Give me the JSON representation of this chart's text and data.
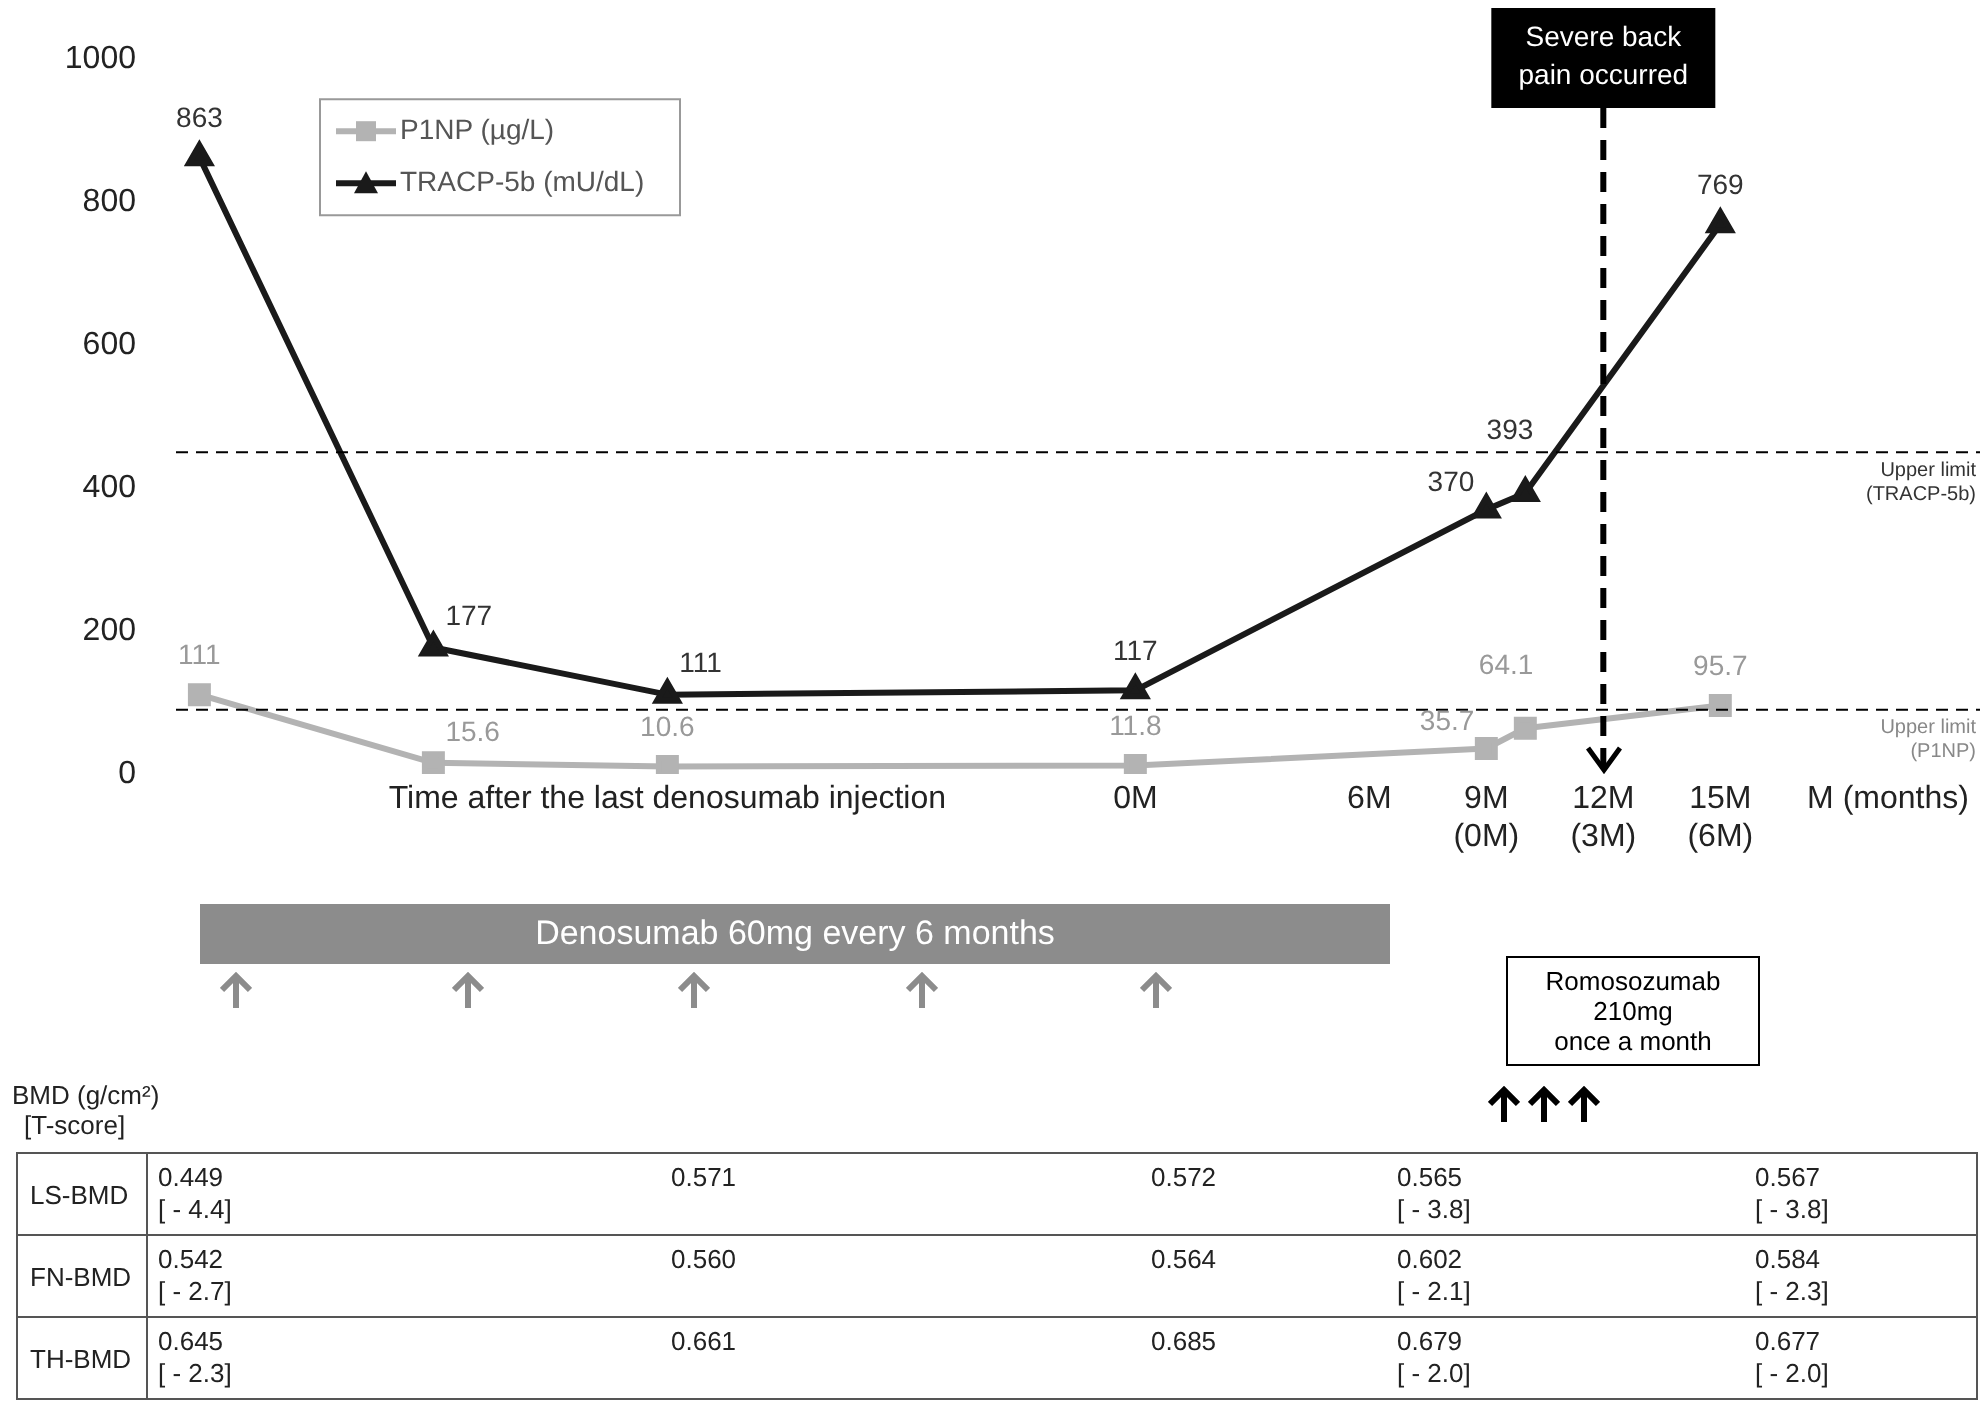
{
  "chart_data": [
    {
      "type": "line",
      "x": [
        -24,
        -18,
        -12,
        0,
        9,
        10,
        15
      ],
      "series": [
        {
          "name": "P1NP (µg/L)",
          "color": "#b3b3b3",
          "marker": "square",
          "values": [
            111,
            15.6,
            10.6,
            11.8,
            35.7,
            64.1,
            95.7
          ]
        },
        {
          "name": "TRACP-5b (mU/dL)",
          "color": "#1a1a1a",
          "marker": "triangle",
          "values": [
            863,
            177,
            111,
            117,
            370,
            393,
            769
          ]
        }
      ],
      "xlim": [
        -24.6,
        19.3
      ],
      "xticks": [
        {
          "value": -12,
          "label": "Time after the last denosumab injection"
        },
        {
          "value": 0,
          "label": "0M"
        },
        {
          "value": 6,
          "label": "6M"
        },
        {
          "value": 9,
          "label": "9M\n(0M)"
        },
        {
          "value": 12,
          "label": "12M\n(3M)"
        },
        {
          "value": 15,
          "label": "15M\n(6M)"
        },
        {
          "value": 19.3,
          "label": "M (months)"
        }
      ],
      "ylim": [
        0,
        1000
      ],
      "yticks": [
        0,
        200,
        400,
        600,
        800,
        1000
      ],
      "grid": false,
      "legend": "top left",
      "data_labels": true,
      "line_style": "solid",
      "ref_lines": [
        {
          "axis": "y",
          "value": 450,
          "label": "Upper limit\n(TRACP-5b)",
          "color": "#000000",
          "line_style": "dashed"
        },
        {
          "axis": "y",
          "value": 90,
          "label": "Upper limit\n(P1NP)",
          "color": "#000000",
          "line_style": "dashed"
        },
        {
          "axis": "x",
          "value": 12,
          "label": "Severe back pain occurred",
          "color": "#000000",
          "line_style": "dashed"
        }
      ],
      "annotations": [
        "Denosumab 60mg every 6 months",
        "Romosozumab\n210mg\nonce a month"
      ]
    },
    {
      "type": "other",
      "title": "BMD (g/cm²)",
      "subtitle": "[T-score]",
      "y_categories": [
        "LS-BMD",
        "FN-BMD",
        "TH-BMD"
      ],
      "cell_labels": [
        [
          "0.449\n[ - 4.4]",
          "0.571",
          "0.572",
          "0.565\n[ - 3.8]",
          "0.567\n[ - 3.8]"
        ],
        [
          "0.542\n[ - 2.7]",
          "0.560",
          "0.564",
          "0.602\n[ - 2.1]",
          "0.584\n[ - 2.3]"
        ],
        [
          "0.645\n[ - 2.3]",
          "0.661",
          "0.685",
          "0.679\n[ - 2.0]",
          "0.677\n[ - 2.0]"
        ]
      ]
    }
  ]
}
